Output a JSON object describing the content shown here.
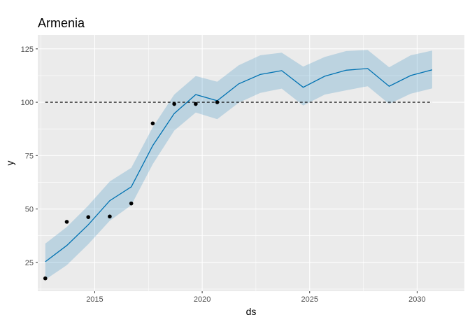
{
  "chart_data": {
    "type": "line",
    "title": "Armenia",
    "xlabel": "ds",
    "ylabel": "y",
    "xlim": [
      2012.35,
      2032.2
    ],
    "ylim": [
      11.5,
      131.5
    ],
    "x_ticks": [
      2015,
      2020,
      2025,
      2030
    ],
    "y_ticks": [
      25,
      50,
      75,
      100,
      125
    ],
    "grid": true,
    "colors": {
      "panel": "#ebebeb",
      "grid": "#ffffff",
      "forecast_line": "#0072b2",
      "interval_band": "#0072b2",
      "observed_points": "#000000",
      "reference_line": "#000000"
    },
    "reference_line": {
      "y": 100,
      "style": "dashed"
    },
    "forecast": {
      "x": [
        2012.7,
        2013.7,
        2014.7,
        2015.7,
        2016.7,
        2017.7,
        2018.7,
        2019.7,
        2020.7,
        2021.7,
        2022.7,
        2023.7,
        2024.7,
        2025.7,
        2026.7,
        2027.7,
        2028.7,
        2029.7,
        2030.7
      ],
      "yhat": [
        25.3,
        32.9,
        42.6,
        53.9,
        60.4,
        79.7,
        94.7,
        103.6,
        100.7,
        108.6,
        113.0,
        114.8,
        107.0,
        112.2,
        115.0,
        115.8,
        107.5,
        112.5,
        115.2
      ],
      "yhat_lower": [
        16.9,
        23.7,
        33.5,
        44.5,
        51.8,
        71.0,
        86.7,
        95.2,
        92.1,
        99.8,
        104.4,
        106.4,
        98.5,
        103.6,
        105.6,
        107.5,
        99.2,
        104.0,
        106.5
      ],
      "yhat_upper": [
        33.8,
        41.6,
        51.6,
        62.9,
        69.3,
        88.3,
        103.6,
        112.3,
        109.6,
        117.3,
        122.0,
        123.2,
        116.7,
        121.2,
        124.0,
        124.5,
        116.4,
        122.0,
        124.2
      ]
    },
    "observed": {
      "x": [
        2012.7,
        2013.7,
        2014.7,
        2015.7,
        2016.7,
        2017.7,
        2018.7,
        2019.7,
        2020.7
      ],
      "y": [
        17.5,
        44.0,
        46.2,
        46.5,
        52.6,
        90.1,
        99.2,
        99.2,
        100.0
      ]
    }
  }
}
